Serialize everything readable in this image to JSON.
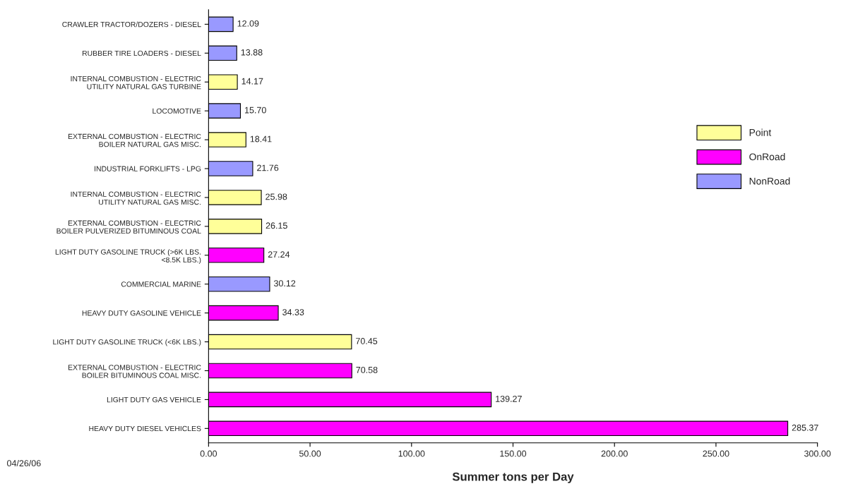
{
  "chart_data": {
    "type": "bar",
    "orientation": "horizontal",
    "categories": [
      "CRAWLER TRACTOR/DOZERS - DIESEL",
      "RUBBER TIRE LOADERS - DIESEL",
      "INTERNAL COMBUSTION - ELECTRIC\nUTILITY NATURAL GAS TURBINE",
      "LOCOMOTIVE",
      "EXTERNAL COMBUSTION - ELECTRIC\nBOILER NATURAL GAS MISC.",
      "INDUSTRIAL FORKLIFTS - LPG",
      "INTERNAL COMBUSTION - ELECTRIC\nUTILITY NATURAL GAS MISC.",
      "EXTERNAL COMBUSTION - ELECTRIC\nBOILER PULVERIZED BITUMINOUS COAL",
      "LIGHT DUTY GASOLINE TRUCK (>6K LBS.\n<8.5K LBS.)",
      "COMMERCIAL MARINE",
      "HEAVY DUTY GASOLINE VEHICLE",
      "LIGHT DUTY GASOLINE TRUCK (<6K LBS.)",
      "EXTERNAL COMBUSTION - ELECTRIC\nBOILER BITUMINOUS COAL MISC.",
      "LIGHT DUTY GAS VEHICLE",
      "HEAVY DUTY DIESEL VEHICLES"
    ],
    "series": [
      {
        "name": "Point",
        "color": "#ffff99",
        "values": [
          null,
          null,
          14.17,
          null,
          18.41,
          null,
          25.98,
          26.15,
          null,
          null,
          null,
          70.45,
          null,
          null,
          null
        ],
        "value_labels": [
          null,
          null,
          "14.17",
          null,
          "18.41",
          null,
          "25.98",
          "26.15",
          null,
          null,
          null,
          "70.45",
          null,
          null,
          null
        ]
      },
      {
        "name": "OnRoad",
        "color": "#ff00ff",
        "values": [
          null,
          null,
          null,
          null,
          null,
          null,
          null,
          null,
          27.24,
          null,
          34.33,
          null,
          70.58,
          139.27,
          285.37
        ],
        "value_labels": [
          null,
          null,
          null,
          null,
          null,
          null,
          null,
          null,
          "27.24",
          null,
          "34.33",
          null,
          "70.58",
          "139.27",
          "285.37"
        ]
      },
      {
        "name": "NonRoad",
        "color": "#9999ff",
        "values": [
          12.09,
          13.88,
          null,
          15.7,
          null,
          21.76,
          null,
          null,
          null,
          30.12,
          null,
          null,
          null,
          null,
          null
        ],
        "value_labels": [
          "12.09",
          "13.88",
          null,
          "15.70",
          null,
          "21.76",
          null,
          null,
          null,
          "30.12",
          null,
          null,
          null,
          null,
          null
        ]
      }
    ],
    "xlim": [
      0,
      300
    ],
    "xticks": [
      {
        "value": 0,
        "label": "0.00"
      },
      {
        "value": 50,
        "label": "50.00"
      },
      {
        "value": 100,
        "label": "100.00"
      },
      {
        "value": 150,
        "label": "150.00"
      },
      {
        "value": 200,
        "label": "200.00"
      },
      {
        "value": 250,
        "label": "250.00"
      },
      {
        "value": 300,
        "label": "300.00"
      }
    ],
    "xlabel": "Summer tons per Day",
    "annotations": [
      "04/26/06"
    ],
    "legend": "right",
    "grid": false
  }
}
